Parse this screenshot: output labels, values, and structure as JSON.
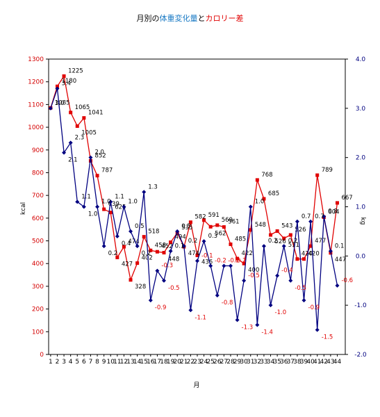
{
  "chart_data": {
    "type": "line",
    "title": {
      "prefix": "月別の",
      "weight_part": "体重変化量",
      "middle": "と",
      "calorie_part": "カロリー差"
    },
    "xlabel": "月",
    "ylabel_left": "kcal",
    "ylabel_right": "kg",
    "x": [
      1,
      2,
      3,
      4,
      5,
      6,
      7,
      8,
      9,
      10,
      11,
      12,
      13,
      14,
      15,
      16,
      17,
      18,
      19,
      20,
      21,
      22,
      23,
      24,
      25,
      26,
      27,
      28,
      29,
      30,
      31,
      32,
      33,
      34,
      35,
      36,
      37,
      38,
      39,
      40,
      41,
      42,
      43,
      44
    ],
    "x_tick_labels": [
      "1",
      "2",
      "3",
      "4",
      "5",
      "6",
      "7",
      "8",
      "9",
      "10",
      "11",
      "12",
      "13",
      "14",
      "15",
      "16",
      "17",
      "18",
      "19",
      "20",
      "21",
      "22",
      "23",
      "24",
      "25",
      "26",
      "27",
      "28",
      "29",
      "30",
      "31",
      "32",
      "33",
      "34",
      "35",
      "36",
      "37",
      "38",
      "39",
      "40",
      "41",
      "42",
      "43",
      "44"
    ],
    "ylim_left": [
      0,
      1300
    ],
    "yticks_left": [
      "0",
      "100",
      "200",
      "300",
      "400",
      "500",
      "600",
      "700",
      "800",
      "900",
      "1000",
      "1100",
      "1200",
      "1300"
    ],
    "ylim_right": [
      -2.0,
      4.0
    ],
    "yticks_right": [
      "-2.0",
      "-1.0",
      "0.0",
      "1.0",
      "2.0",
      "3.0",
      "4.0"
    ],
    "grid": false,
    "series": [
      {
        "name": "カロリー差",
        "axis": "left",
        "color": "#e00000",
        "marker": "square",
        "values": [
          1085,
          1180,
          1225,
          1065,
          1005,
          1041,
          852,
          787,
          639,
          625,
          427,
          474,
          328,
          402,
          518,
          458,
          452,
          448,
          494,
          535,
          474,
          582,
          436,
          591,
          562,
          569,
          561,
          485,
          422,
          400,
          548,
          768,
          685,
          526,
          543,
          511,
          526,
          420,
          420,
          477,
          789,
          604,
          447,
          667
        ],
        "labels": [
          "1085",
          "1180",
          "1225",
          "1065",
          "1005",
          "1041",
          "852",
          "787",
          "639",
          "625",
          "427",
          "474",
          "328",
          "402",
          "518",
          "458",
          "452",
          "448",
          "494",
          "535",
          "474",
          "582",
          "436",
          "591",
          "562",
          "569",
          "561",
          "485",
          "422",
          "400",
          "548",
          "768",
          "685",
          "526",
          "543",
          "511",
          "526",
          "420",
          "420",
          "477",
          "789",
          "604",
          "447",
          "667"
        ]
      },
      {
        "name": "体重変化量",
        "axis": "right",
        "color": "#000080",
        "marker": "diamond",
        "values": [
          3.0,
          3.4,
          2.1,
          2.3,
          1.1,
          1.0,
          2.0,
          1.0,
          0.2,
          1.1,
          0.4,
          1.0,
          0.5,
          0.2,
          1.3,
          -0.9,
          -0.3,
          -0.5,
          0.1,
          0.5,
          0.2,
          -1.1,
          -0.1,
          0.3,
          -0.2,
          -0.8,
          -0.2,
          -0.2,
          -1.3,
          -0.5,
          1.0,
          -1.4,
          0.2,
          -1.0,
          -0.4,
          0.2,
          -0.5,
          0.7,
          -0.9,
          0.7,
          -1.5,
          0.8,
          0.1,
          -0.6
        ],
        "labels": [
          "3.0",
          "3.4",
          "2.1",
          "2.3",
          "1.1",
          "1.0",
          "2.0",
          "1.0",
          "0.2",
          "1.1",
          "0.4",
          "1.0",
          "0.5",
          "0.2",
          "1.3",
          "-0.9",
          "-0.3",
          "-0.5",
          "0.1",
          "0.5",
          "0.2",
          "-1.1",
          "-0.1",
          "0.3",
          "-0.2",
          "-0.8",
          "-0.2",
          "-0.2",
          "-1.3",
          "-0.5",
          "1.0",
          "-1.4",
          "0.2",
          "-1.0",
          "-0.4",
          "0.2",
          "-0.5",
          "0.7",
          "-0.9",
          "0.7",
          "-1.5",
          "0.8",
          "0.1",
          "-0.6"
        ]
      }
    ],
    "colors": {
      "weight_title": "#1a7ac4",
      "calorie_title": "#e00000",
      "left_ticks": "#d40000",
      "right_ticks": "#000080"
    }
  }
}
